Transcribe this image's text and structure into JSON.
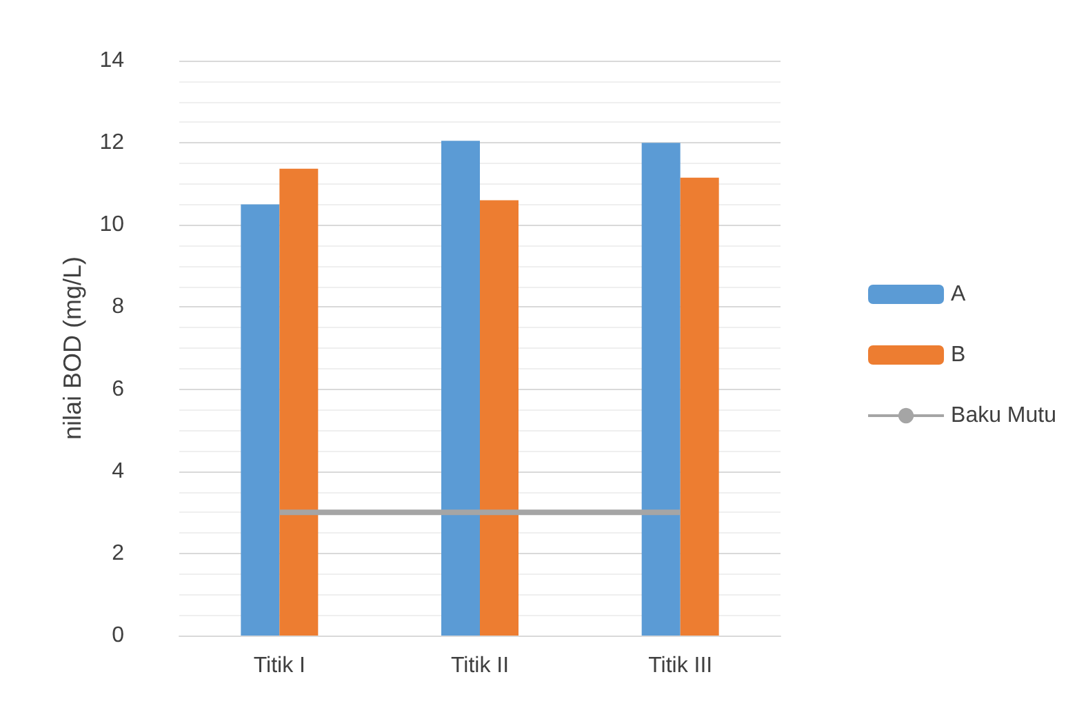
{
  "chart_data": {
    "type": "bar",
    "ylabel": "nilai BOD (mg/L)",
    "categories": [
      "Titik I",
      "Titik II",
      "Titik III"
    ],
    "series": [
      {
        "name": "A",
        "color": "#5b9bd5",
        "values": [
          10.5,
          12.05,
          12.0
        ]
      },
      {
        "name": "B",
        "color": "#ed7d31",
        "values": [
          11.37,
          10.6,
          11.15
        ]
      },
      {
        "name": "Baku Mutu",
        "type": "line",
        "color": "#a5a5a5",
        "values": [
          3,
          3,
          3
        ]
      }
    ],
    "ylim": [
      0,
      14
    ],
    "yticks": [
      0,
      2,
      4,
      6,
      8,
      10,
      12,
      14
    ],
    "grid": "y",
    "legend": "right",
    "marker": "none"
  }
}
